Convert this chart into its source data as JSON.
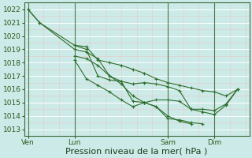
{
  "background_color": "#cceae7",
  "grid_color": "#ffffff",
  "line_color": "#2d6e2d",
  "marker_color": "#2d6e2d",
  "ylabel_ticks": [
    1013,
    1014,
    1015,
    1016,
    1017,
    1018,
    1019,
    1020,
    1021,
    1022
  ],
  "ylim": [
    1012.5,
    1022.5
  ],
  "xlabel": "Pression niveau de la mer( hPa )",
  "xlabel_fontsize": 8,
  "tick_fontsize": 6.5,
  "xtick_labels": [
    "Ven",
    "Lun",
    "Sam",
    "Dim"
  ],
  "xtick_positions": [
    0,
    12,
    36,
    48
  ],
  "vline_positions": [
    0,
    12,
    36,
    48
  ],
  "xlim": [
    -1,
    57
  ],
  "series": [
    {
      "x": [
        0,
        3,
        12,
        15,
        18,
        21,
        24,
        27,
        30,
        33,
        36,
        39,
        42,
        45,
        48,
        51,
        54
      ],
      "y": [
        1022,
        1021,
        1019.3,
        1019.2,
        1018.2,
        1018.0,
        1017.8,
        1017.5,
        1017.2,
        1016.8,
        1016.5,
        1016.3,
        1016.1,
        1015.9,
        1015.8,
        1015.5,
        1016.0
      ]
    },
    {
      "x": [
        0,
        3,
        12,
        15,
        18,
        21,
        24,
        27,
        30,
        33,
        36,
        39,
        42,
        45
      ],
      "y": [
        1022,
        1021,
        1019.0,
        1018.8,
        1018.3,
        1017.0,
        1016.4,
        1015.5,
        1015.0,
        1014.7,
        1013.8,
        1013.7,
        1013.5,
        1013.4
      ]
    },
    {
      "x": [
        12,
        15,
        18,
        21,
        24,
        27,
        30,
        33,
        36,
        39,
        42,
        45,
        48,
        51,
        54
      ],
      "y": [
        1018.5,
        1018.3,
        1017.8,
        1017.0,
        1016.6,
        1016.4,
        1016.5,
        1016.4,
        1016.2,
        1015.9,
        1014.5,
        1014.3,
        1014.1,
        1014.8,
        1016.0
      ]
    },
    {
      "x": [
        12,
        15,
        18,
        21,
        24,
        27,
        30,
        33,
        36,
        39,
        42
      ],
      "y": [
        1019.3,
        1019.0,
        1017.0,
        1016.7,
        1016.6,
        1015.1,
        1015.0,
        1014.7,
        1014.0,
        1013.6,
        1013.4
      ]
    },
    {
      "x": [
        12,
        15,
        18,
        21,
        24,
        27,
        30,
        33,
        36,
        39,
        42,
        45,
        48,
        51,
        54
      ],
      "y": [
        1018.2,
        1016.8,
        1016.3,
        1015.8,
        1015.2,
        1014.7,
        1015.0,
        1015.2,
        1015.2,
        1015.1,
        1014.5,
        1014.5,
        1014.4,
        1014.9,
        1016.0
      ]
    }
  ]
}
